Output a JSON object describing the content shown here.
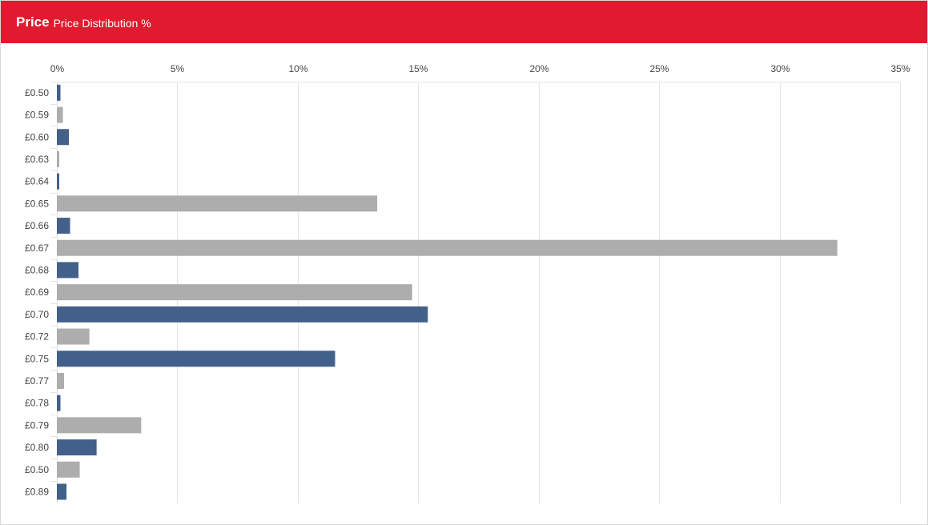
{
  "header": {
    "title": "Price",
    "subtitle": "Price Distribution %"
  },
  "colors": {
    "header_bg": "#e01b2f",
    "bar_blue": "#43608b",
    "bar_grey": "#adadad",
    "grid": "#e3e3e3"
  },
  "chart_data": {
    "type": "bar",
    "orientation": "horizontal",
    "title": "Price Distribution %",
    "xlabel": "",
    "ylabel": "",
    "xlim": [
      0,
      35
    ],
    "ticks": [
      "0%",
      "5%",
      "10%",
      "15%",
      "20%",
      "25%",
      "30%",
      "35%"
    ],
    "tick_values": [
      0,
      5,
      10,
      15,
      20,
      25,
      30,
      35
    ],
    "grid": true,
    "categories": [
      "£0.50",
      "£0.59",
      "£0.60",
      "£0.63",
      "£0.64",
      "£0.65",
      "£0.66",
      "£0.67",
      "£0.68",
      "£0.69",
      "£0.70",
      "£0.72",
      "£0.75",
      "£0.77",
      "£0.78",
      "£0.79",
      "£0.80",
      "£0.50",
      "£0.89"
    ],
    "values": [
      0.15,
      0.25,
      0.5,
      0.1,
      0.1,
      13.3,
      0.55,
      32.4,
      0.9,
      14.75,
      15.4,
      1.35,
      11.55,
      0.3,
      0.15,
      3.5,
      1.65,
      0.95,
      0.4
    ],
    "bar_colors": [
      "blue",
      "grey",
      "blue",
      "grey",
      "blue",
      "grey",
      "blue",
      "grey",
      "blue",
      "grey",
      "blue",
      "grey",
      "blue",
      "grey",
      "blue",
      "grey",
      "blue",
      "grey",
      "blue"
    ]
  }
}
